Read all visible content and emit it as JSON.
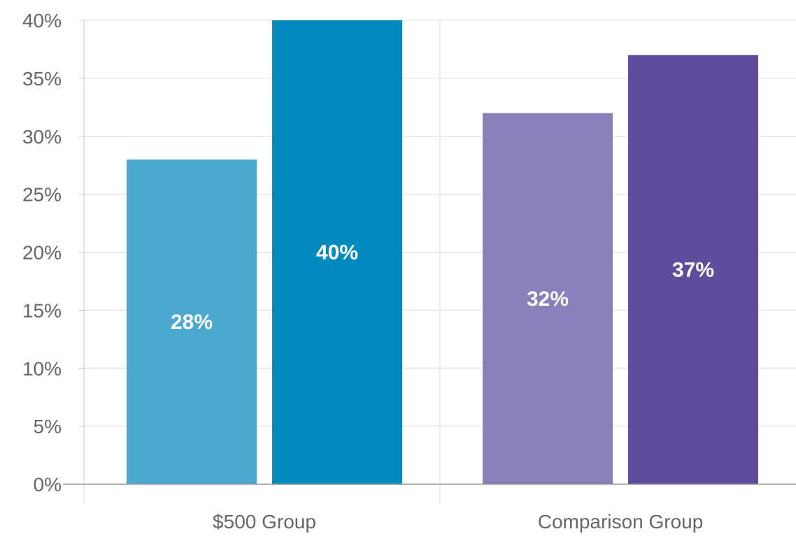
{
  "chart_data": {
    "type": "bar",
    "categories": [
      "$500 Group",
      "Comparison Group"
    ],
    "bars": [
      {
        "category": "$500 Group",
        "value": 28,
        "label": "28%",
        "color": "#4aa8d1"
      },
      {
        "category": "$500 Group",
        "value": 40,
        "label": "40%",
        "color": "#0289bd"
      },
      {
        "category": "Comparison Group",
        "value": 32,
        "label": "32%",
        "color": "#8a7fb9"
      },
      {
        "category": "Comparison Group",
        "value": 37,
        "label": "37%",
        "color": "#604c9c"
      }
    ],
    "ylim": [
      0,
      40
    ],
    "yticks": [
      0,
      5,
      10,
      15,
      20,
      25,
      30,
      35,
      40
    ],
    "ytick_labels": [
      "0%",
      "5%",
      "10%",
      "15%",
      "20%",
      "25%",
      "30%",
      "35%",
      "40%"
    ],
    "grid": true,
    "xlabel": "",
    "ylabel": "",
    "title": ""
  }
}
